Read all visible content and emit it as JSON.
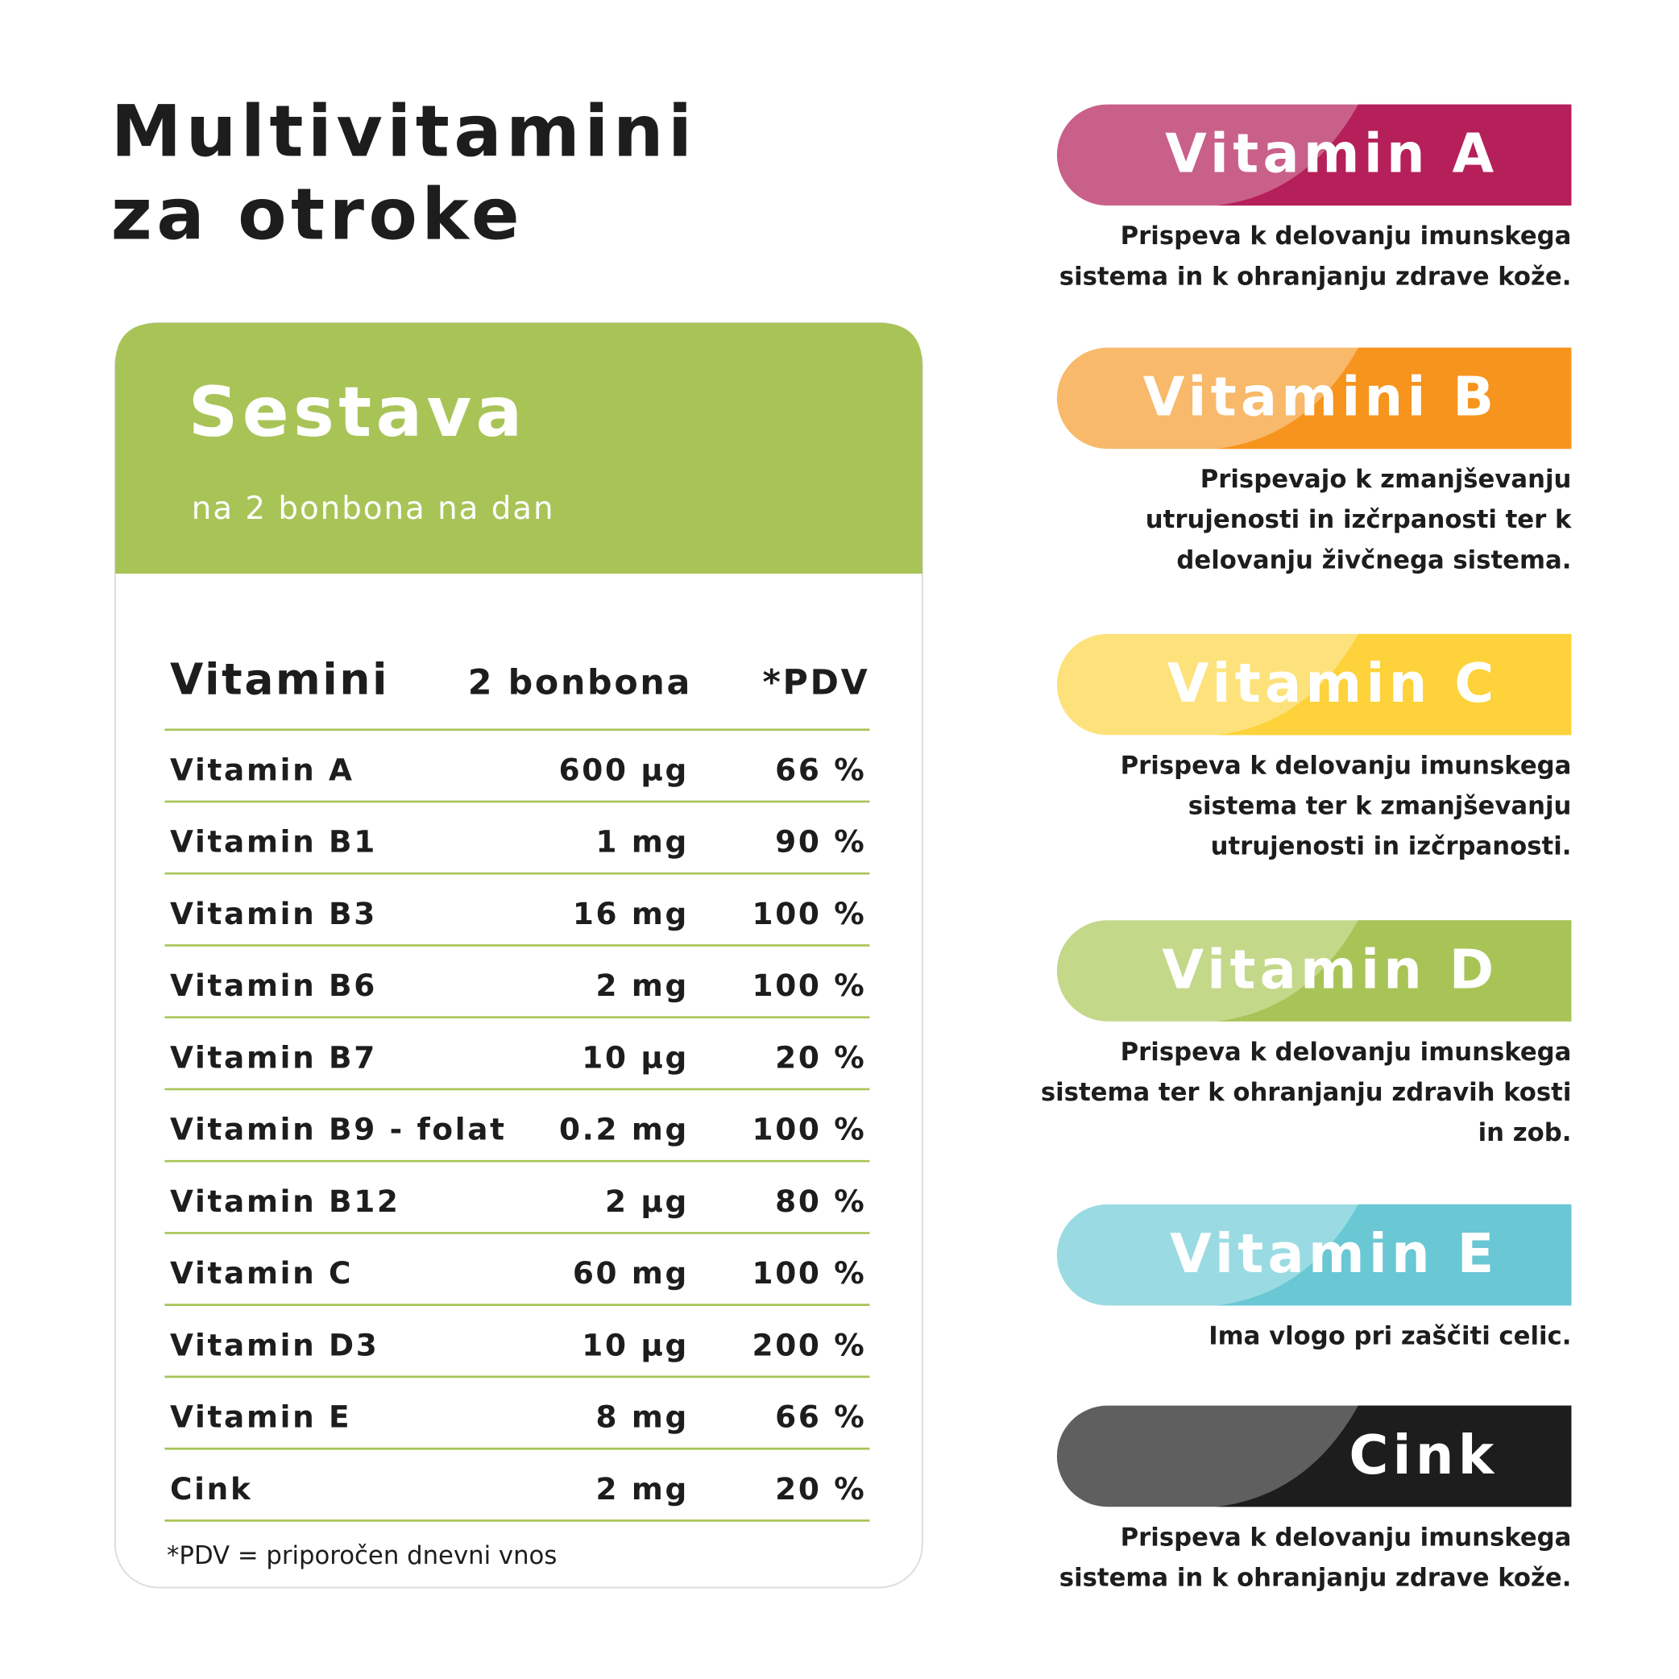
{
  "header": {
    "title_lines": [
      "Multivitamini",
      "za otroke"
    ]
  },
  "composition": {
    "title": "Sestava",
    "subtitle": "na 2 bonbona na dan",
    "table": {
      "columns": [
        "Vitamini",
        "2 bonbona",
        "*PDV"
      ],
      "rows": [
        [
          "Vitamin A",
          "600 µg",
          "66 %"
        ],
        [
          "Vitamin B1",
          "1 mg",
          "90 %"
        ],
        [
          "Vitamin B3",
          "16 mg",
          "100 %"
        ],
        [
          "Vitamin B6",
          "2 mg",
          "100 %"
        ],
        [
          "Vitamin B7",
          "10 µg",
          "20 %"
        ],
        [
          "Vitamin B9 - folat",
          "0.2 mg",
          "100 %"
        ],
        [
          "Vitamin B12",
          "2 µg",
          "80 %"
        ],
        [
          "Vitamin C",
          "60 mg",
          "100 %"
        ],
        [
          "Vitamin D3",
          "10 µg",
          "200 %"
        ],
        [
          "Vitamin E",
          "8 mg",
          "66 %"
        ],
        [
          "Cink",
          "2 mg",
          "20 %"
        ]
      ]
    },
    "footnote": "*PDV = priporočen dnevni vnos"
  },
  "benefits": [
    {
      "name": "Vitamin A",
      "color": "#b51f5a",
      "light": "#c9608a",
      "description": [
        "Prispeva k delovanju imunskega",
        "sistema in k ohranjanju zdrave kože."
      ]
    },
    {
      "name": "Vitamini B",
      "color": "#f7941d",
      "light": "#f8b96a",
      "description": [
        "Prispevajo k zmanjševanju",
        "utrujenosti in izčrpanosti ter k",
        "delovanju živčnega sistema."
      ]
    },
    {
      "name": "Vitamin C",
      "color": "#fdd23a",
      "light": "#fde27c",
      "description": [
        "Prispeva k delovanju imunskega",
        "sistema ter k zmanjševanju",
        "utrujenosti in izčrpanosti."
      ]
    },
    {
      "name": "Vitamin D",
      "color": "#a8c457",
      "light": "#c4d88a",
      "description": [
        "Prispeva k delovanju imunskega",
        "sistema ter k ohranjanju zdravih kosti",
        "in zob."
      ]
    },
    {
      "name": "Vitamin E",
      "color": "#6ac7d4",
      "light": "#9adbe3",
      "description": [
        "Ima vlogo pri zaščiti celic."
      ]
    },
    {
      "name": "Cink",
      "color": "#1d1d1d",
      "light": "#5f5f5f",
      "description": [
        "Prispeva k delovanju imunskega",
        "sistema in k ohranjanju zdrave kože."
      ]
    }
  ]
}
